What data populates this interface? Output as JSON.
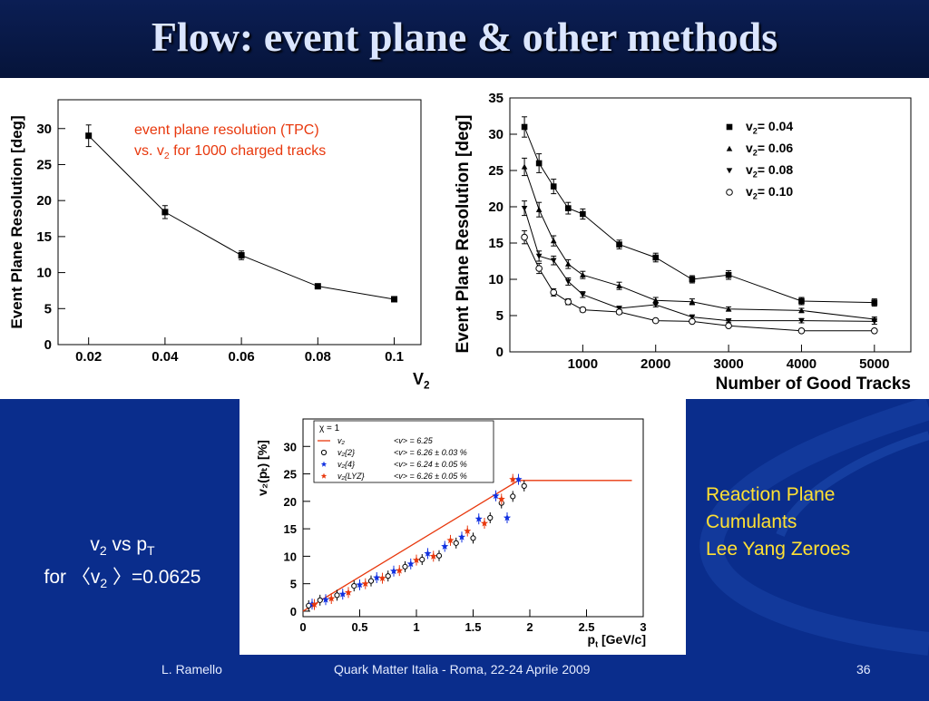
{
  "slide": {
    "title": "Flow: event plane & other methods",
    "footer": {
      "author": "L. Ramello",
      "conference": "Quark Matter Italia  - Roma, 22-24 Aprile 2009",
      "page": "36"
    },
    "left_note": {
      "line1_a": "v",
      "line1_sub": "2",
      "line1_b": " vs p",
      "line1_sub2": "T",
      "line2_a": "for 〈v",
      "line2_sub": "2",
      "line2_b": " 〉=0.0625"
    },
    "methods": [
      "Reaction Plane",
      "Cumulants",
      "Lee Yang Zeroes"
    ]
  },
  "colors": {
    "title_bar": "#06143a",
    "title_text": "#dbe6ff",
    "lower_bg": "#0a2d8c",
    "methods_text": "#ffe033",
    "annotation_text": "#e8380d"
  },
  "chart_data": [
    {
      "id": "resolution-vs-v2",
      "type": "line",
      "xlabel": "V",
      "xlabel_sub": "2",
      "ylabel": "Event Plane Resolution [deg]",
      "xlim": [
        0.012,
        0.107
      ],
      "ylim": [
        0,
        34
      ],
      "xticks": [
        0.02,
        0.04,
        0.06,
        0.08,
        0.1
      ],
      "xtick_labels": [
        "0.02",
        "0.04",
        "0.06",
        "0.08",
        "0.1"
      ],
      "yticks": [
        0,
        5,
        10,
        15,
        20,
        25,
        30
      ],
      "annotation": {
        "line1": "event plane resolution (TPC)",
        "line2_a": "vs. v",
        "line2_sub": "2",
        "line2_b": " for 1000 charged tracks"
      },
      "series": [
        {
          "x": [
            0.02,
            0.04,
            0.06,
            0.08,
            0.1
          ],
          "values": [
            29.0,
            18.4,
            12.4,
            8.1,
            6.3
          ],
          "errors": [
            1.5,
            0.9,
            0.6,
            0.3,
            0.2
          ]
        }
      ]
    },
    {
      "id": "resolution-vs-tracks",
      "type": "line",
      "xlabel": "Number of Good Tracks",
      "ylabel": "Event Plane Resolution [deg]",
      "xlim": [
        0,
        5500
      ],
      "ylim": [
        0,
        35
      ],
      "xticks": [
        1000,
        2000,
        3000,
        4000,
        5000
      ],
      "xtick_labels": [
        "1000",
        "2000",
        "3000",
        "4000",
        "5000"
      ],
      "yticks": [
        0,
        5,
        10,
        15,
        20,
        25,
        30,
        35
      ],
      "legend_position": "top-right",
      "x": [
        200,
        400,
        600,
        800,
        1000,
        1500,
        2000,
        2500,
        3000,
        4000,
        5000
      ],
      "series": [
        {
          "name": "v",
          "name_sub": "2",
          "name_val": "= 0.04",
          "marker": "square",
          "values": [
            31.0,
            26.0,
            22.8,
            19.8,
            19.0,
            14.8,
            13.0,
            10.0,
            10.6,
            7.0,
            6.8
          ],
          "errors": [
            1.4,
            1.3,
            1.0,
            0.8,
            0.7,
            0.6,
            0.6,
            0.5,
            0.6,
            0.5,
            0.5
          ]
        },
        {
          "name": "v",
          "name_sub": "2",
          "name_val": "= 0.06",
          "marker": "triangle-up",
          "values": [
            25.5,
            19.6,
            15.3,
            12.1,
            10.6,
            9.1,
            7.1,
            6.9,
            5.9,
            5.7,
            4.5
          ],
          "errors": [
            1.2,
            1.0,
            0.7,
            0.6,
            0.5,
            0.5,
            0.4,
            0.4,
            0.3,
            0.3,
            0.3
          ]
        },
        {
          "name": "v",
          "name_sub": "2",
          "name_val": "= 0.08",
          "marker": "triangle-down",
          "values": [
            19.8,
            13.2,
            12.6,
            9.7,
            7.9,
            6.0,
            6.5,
            4.8,
            4.3,
            4.3,
            4.2
          ],
          "errors": [
            1.0,
            0.7,
            0.6,
            0.5,
            0.4,
            0.3,
            0.3,
            0.3,
            0.2,
            0.3,
            0.4
          ]
        },
        {
          "name": "v",
          "name_sub": "2",
          "name_val": "= 0.10",
          "marker": "open-circle",
          "values": [
            15.8,
            11.5,
            8.2,
            6.9,
            5.8,
            5.5,
            4.3,
            4.2,
            3.6,
            2.9,
            2.9
          ],
          "errors": [
            0.9,
            0.7,
            0.5,
            0.4,
            0.3,
            0.3,
            0.2,
            0.2,
            0.2,
            0.2,
            0.2
          ]
        }
      ]
    },
    {
      "id": "v2-vs-pt",
      "type": "scatter",
      "xlabel": "p",
      "xlabel_sub": "t",
      "xlabel_unit": " [GeV/c]",
      "ylabel": "v₂(pₜ) [%]",
      "xlim": [
        0,
        3
      ],
      "ylim": [
        -1,
        35
      ],
      "xticks": [
        0,
        0.5,
        1,
        1.5,
        2,
        2.5,
        3
      ],
      "xtick_labels": [
        "0",
        "0.5",
        "1",
        "1.5",
        "2",
        "2.5",
        "3"
      ],
      "yticks": [
        0,
        5,
        10,
        15,
        20,
        25,
        30
      ],
      "legend_header": "χ = 1",
      "legend": [
        {
          "label": "v₂",
          "value": "<v> = 6.25",
          "marker": "line",
          "color": "#e8380d"
        },
        {
          "label": "v₂{2}",
          "value": "<v> = 6.26 ± 0.03 %",
          "marker": "open-circle",
          "color": "#000000"
        },
        {
          "label": "v₂{4}",
          "value": "<v> = 6.24 ± 0.05 %",
          "marker": "star",
          "color": "#1030e0"
        },
        {
          "label": "v₂{LYZ}",
          "value": "<v> = 6.26 ± 0.05 %",
          "marker": "star",
          "color": "#e8380d"
        }
      ],
      "input_curve": {
        "x": [
          0,
          1.9,
          2.9
        ],
        "values": [
          0,
          23.8,
          23.8
        ]
      },
      "series": [
        {
          "name": "v₂{2}",
          "marker": "open-circle",
          "color": "#000000",
          "x": [
            0.05,
            0.15,
            0.3,
            0.45,
            0.6,
            0.75,
            0.9,
            1.05,
            1.2,
            1.35,
            1.5,
            1.65,
            1.75,
            1.85,
            1.95
          ],
          "values": [
            1.0,
            2.0,
            2.9,
            4.6,
            5.5,
            6.4,
            8.1,
            9.4,
            10.1,
            12.4,
            13.3,
            17.0,
            19.7,
            20.9,
            22.8
          ]
        },
        {
          "name": "v₂{4}",
          "marker": "star",
          "color": "#1030e0",
          "x": [
            0.08,
            0.2,
            0.35,
            0.5,
            0.65,
            0.8,
            0.95,
            1.1,
            1.25,
            1.4,
            1.55,
            1.7,
            1.8,
            1.9
          ],
          "values": [
            1.3,
            2.1,
            3.1,
            4.8,
            6.1,
            7.3,
            8.6,
            10.5,
            11.8,
            13.5,
            16.8,
            21.0,
            17.0,
            24.0
          ]
        },
        {
          "name": "v₂{LYZ}",
          "marker": "star",
          "color": "#e8380d",
          "x": [
            0.1,
            0.25,
            0.4,
            0.55,
            0.7,
            0.85,
            1.0,
            1.15,
            1.3,
            1.45,
            1.6,
            1.75,
            1.85
          ],
          "values": [
            1.2,
            2.3,
            3.4,
            5.0,
            6.0,
            7.4,
            9.3,
            10.0,
            12.9,
            14.6,
            16.0,
            20.4,
            24.0
          ]
        }
      ]
    }
  ]
}
